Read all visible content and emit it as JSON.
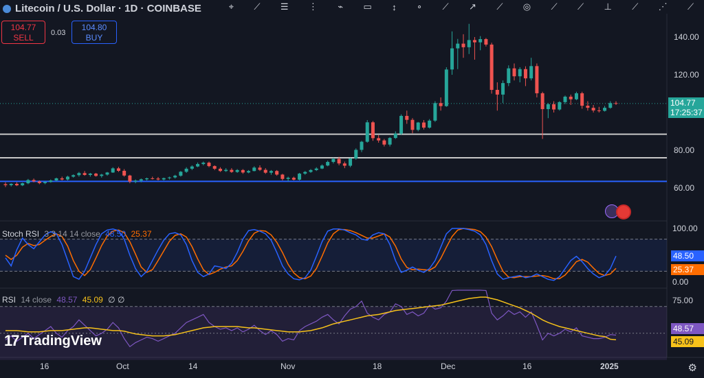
{
  "header": {
    "symbol_title": "Litecoin / U.S. Dollar · 1D · COINBASE",
    "sell_price": "104.77",
    "sell_label": "SELL",
    "spread": "0.03",
    "buy_price": "104.80",
    "buy_label": "BUY"
  },
  "toolbar": {
    "tools": [
      "crosshair-icon",
      "trend-line-icon",
      "horizontal-lines-icon",
      "fib-icon",
      "brush-icon",
      "text-icon",
      "measure-icon",
      "zoom-icon",
      "pattern-icon",
      "projection-icon",
      "path-icon",
      "arrow-icon",
      "circle-icon",
      "curve-icon",
      "ruler-icon",
      "anchor-icon",
      "node-icon",
      "more-icon"
    ]
  },
  "price_axis": {
    "ticks": [
      "140.00",
      "120.00",
      "80.00",
      "60.00"
    ],
    "current_price": "104.77",
    "countdown": "17:25:37"
  },
  "stoch": {
    "title": "Stoch RSI",
    "params": "3 3 14 14 close",
    "k_value": "48.50",
    "d_value": "25.37",
    "ticks": [
      "100.00",
      "0.00"
    ],
    "tag_k": "48.50",
    "tag_d": "25.37"
  },
  "rsi": {
    "title": "RSI",
    "params": "14 close",
    "value": "48.57",
    "ma_value": "45.09",
    "extra": "∅ ∅",
    "ticks": [
      "75.00"
    ],
    "tag_value": "48.57",
    "tag_ma": "45.09"
  },
  "time_axis": [
    "16",
    "Oct",
    "14",
    "Nov",
    "18",
    "Dec",
    "16",
    "2025"
  ],
  "watermark": "TradingView",
  "colors": {
    "background": "#131722",
    "up": "#26a69a",
    "down": "#ef5350",
    "k_line": "#2962ff",
    "d_line": "#ff6d00",
    "rsi_line": "#7e57c2",
    "rsi_ma": "#f7c21a",
    "support_line": "#c8c8c8",
    "blue_line": "#2962ff",
    "price_tag": "#26a69a"
  },
  "chart_data": {
    "type": "candlestick",
    "interval": "1D",
    "ylim": [
      55,
      148
    ],
    "candles": [
      {
        "o": 62.0,
        "h": 63.0,
        "l": 60.5,
        "c": 61.5
      },
      {
        "o": 61.5,
        "h": 62.5,
        "l": 60.8,
        "c": 62.2
      },
      {
        "o": 62.2,
        "h": 63.0,
        "l": 61.0,
        "c": 61.4
      },
      {
        "o": 61.4,
        "h": 62.8,
        "l": 61.0,
        "c": 62.5
      },
      {
        "o": 62.5,
        "h": 64.8,
        "l": 62.0,
        "c": 64.2
      },
      {
        "o": 64.2,
        "h": 65.0,
        "l": 63.0,
        "c": 63.5
      },
      {
        "o": 63.5,
        "h": 64.0,
        "l": 62.0,
        "c": 62.6
      },
      {
        "o": 62.6,
        "h": 63.5,
        "l": 62.0,
        "c": 63.2
      },
      {
        "o": 63.2,
        "h": 64.5,
        "l": 62.8,
        "c": 64.0
      },
      {
        "o": 64.0,
        "h": 65.5,
        "l": 63.5,
        "c": 65.1
      },
      {
        "o": 65.1,
        "h": 66.0,
        "l": 64.0,
        "c": 64.5
      },
      {
        "o": 64.5,
        "h": 66.5,
        "l": 64.0,
        "c": 66.0
      },
      {
        "o": 66.0,
        "h": 67.2,
        "l": 65.5,
        "c": 66.8
      },
      {
        "o": 66.8,
        "h": 68.5,
        "l": 66.0,
        "c": 67.9
      },
      {
        "o": 67.9,
        "h": 69.0,
        "l": 66.5,
        "c": 66.9
      },
      {
        "o": 66.9,
        "h": 68.0,
        "l": 66.0,
        "c": 67.6
      },
      {
        "o": 67.6,
        "h": 68.0,
        "l": 66.0,
        "c": 66.4
      },
      {
        "o": 66.4,
        "h": 67.5,
        "l": 65.5,
        "c": 67.1
      },
      {
        "o": 67.1,
        "h": 68.5,
        "l": 66.5,
        "c": 68.2
      },
      {
        "o": 68.2,
        "h": 71.0,
        "l": 68.0,
        "c": 70.4
      },
      {
        "o": 70.4,
        "h": 71.2,
        "l": 68.5,
        "c": 69.1
      },
      {
        "o": 69.1,
        "h": 70.0,
        "l": 66.0,
        "c": 66.6
      },
      {
        "o": 66.6,
        "h": 67.0,
        "l": 62.5,
        "c": 63.4
      },
      {
        "o": 63.4,
        "h": 64.5,
        "l": 62.5,
        "c": 63.9
      },
      {
        "o": 63.9,
        "h": 65.0,
        "l": 63.0,
        "c": 64.6
      },
      {
        "o": 64.6,
        "h": 65.5,
        "l": 64.0,
        "c": 65.1
      },
      {
        "o": 65.1,
        "h": 66.0,
        "l": 64.5,
        "c": 65.0
      },
      {
        "o": 65.0,
        "h": 65.8,
        "l": 64.0,
        "c": 64.5
      },
      {
        "o": 64.5,
        "h": 65.5,
        "l": 64.0,
        "c": 65.2
      },
      {
        "o": 65.2,
        "h": 66.0,
        "l": 64.5,
        "c": 65.6
      },
      {
        "o": 65.6,
        "h": 67.0,
        "l": 65.0,
        "c": 66.5
      },
      {
        "o": 66.5,
        "h": 69.0,
        "l": 66.0,
        "c": 68.6
      },
      {
        "o": 68.6,
        "h": 71.0,
        "l": 68.0,
        "c": 70.2
      },
      {
        "o": 70.2,
        "h": 72.0,
        "l": 69.5,
        "c": 71.4
      },
      {
        "o": 71.4,
        "h": 73.5,
        "l": 71.0,
        "c": 72.7
      },
      {
        "o": 72.7,
        "h": 74.0,
        "l": 72.0,
        "c": 73.4
      },
      {
        "o": 73.4,
        "h": 74.0,
        "l": 71.0,
        "c": 71.6
      },
      {
        "o": 71.6,
        "h": 72.0,
        "l": 69.5,
        "c": 70.2
      },
      {
        "o": 70.2,
        "h": 71.0,
        "l": 68.5,
        "c": 69.0
      },
      {
        "o": 69.0,
        "h": 70.5,
        "l": 68.5,
        "c": 69.6
      },
      {
        "o": 69.6,
        "h": 70.5,
        "l": 68.0,
        "c": 68.5
      },
      {
        "o": 68.5,
        "h": 70.0,
        "l": 68.0,
        "c": 69.5
      },
      {
        "o": 69.5,
        "h": 70.0,
        "l": 67.5,
        "c": 68.2
      },
      {
        "o": 68.2,
        "h": 69.5,
        "l": 67.8,
        "c": 69.0
      },
      {
        "o": 69.0,
        "h": 71.5,
        "l": 68.8,
        "c": 70.8
      },
      {
        "o": 70.8,
        "h": 72.0,
        "l": 69.0,
        "c": 69.6
      },
      {
        "o": 69.6,
        "h": 70.5,
        "l": 67.5,
        "c": 68.1
      },
      {
        "o": 68.1,
        "h": 69.5,
        "l": 67.0,
        "c": 69.0
      },
      {
        "o": 69.0,
        "h": 69.5,
        "l": 66.5,
        "c": 67.1
      },
      {
        "o": 67.1,
        "h": 67.5,
        "l": 64.0,
        "c": 64.8
      },
      {
        "o": 64.8,
        "h": 66.0,
        "l": 63.5,
        "c": 65.4
      },
      {
        "o": 65.4,
        "h": 66.0,
        "l": 64.0,
        "c": 64.4
      },
      {
        "o": 64.4,
        "h": 68.0,
        "l": 64.0,
        "c": 67.6
      },
      {
        "o": 67.6,
        "h": 69.0,
        "l": 67.0,
        "c": 68.5
      },
      {
        "o": 68.5,
        "h": 70.0,
        "l": 68.0,
        "c": 69.5
      },
      {
        "o": 69.5,
        "h": 71.0,
        "l": 69.0,
        "c": 70.3
      },
      {
        "o": 70.3,
        "h": 72.5,
        "l": 70.0,
        "c": 71.9
      },
      {
        "o": 71.9,
        "h": 74.5,
        "l": 71.5,
        "c": 73.8
      },
      {
        "o": 73.8,
        "h": 76.0,
        "l": 73.0,
        "c": 75.4
      },
      {
        "o": 75.4,
        "h": 76.5,
        "l": 72.0,
        "c": 73.0
      },
      {
        "o": 73.0,
        "h": 74.0,
        "l": 70.5,
        "c": 71.8
      },
      {
        "o": 71.8,
        "h": 76.0,
        "l": 71.0,
        "c": 75.6
      },
      {
        "o": 75.6,
        "h": 81.0,
        "l": 75.0,
        "c": 80.2
      },
      {
        "o": 80.2,
        "h": 85.0,
        "l": 79.0,
        "c": 84.5
      },
      {
        "o": 84.5,
        "h": 96.0,
        "l": 84.0,
        "c": 94.8
      },
      {
        "o": 94.8,
        "h": 95.5,
        "l": 85.0,
        "c": 86.4
      },
      {
        "o": 86.4,
        "h": 88.0,
        "l": 84.0,
        "c": 85.2
      },
      {
        "o": 85.2,
        "h": 86.0,
        "l": 82.0,
        "c": 83.0
      },
      {
        "o": 83.0,
        "h": 87.0,
        "l": 82.0,
        "c": 86.5
      },
      {
        "o": 86.5,
        "h": 90.0,
        "l": 86.0,
        "c": 88.8
      },
      {
        "o": 88.8,
        "h": 99.0,
        "l": 88.0,
        "c": 98.2
      },
      {
        "o": 98.2,
        "h": 101.0,
        "l": 94.0,
        "c": 96.1
      },
      {
        "o": 96.1,
        "h": 97.0,
        "l": 89.0,
        "c": 90.8
      },
      {
        "o": 90.8,
        "h": 95.0,
        "l": 90.0,
        "c": 94.7
      },
      {
        "o": 94.7,
        "h": 96.0,
        "l": 91.0,
        "c": 92.0
      },
      {
        "o": 92.0,
        "h": 96.5,
        "l": 91.5,
        "c": 95.7
      },
      {
        "o": 95.7,
        "h": 106.0,
        "l": 95.0,
        "c": 105.0
      },
      {
        "o": 105.0,
        "h": 108.0,
        "l": 101.0,
        "c": 103.4
      },
      {
        "o": 103.4,
        "h": 124.0,
        "l": 103.0,
        "c": 122.8
      },
      {
        "o": 122.8,
        "h": 143.0,
        "l": 120.0,
        "c": 134.0
      },
      {
        "o": 134.0,
        "h": 139.0,
        "l": 123.0,
        "c": 136.5
      },
      {
        "o": 136.5,
        "h": 141.5,
        "l": 129.0,
        "c": 134.6
      },
      {
        "o": 134.6,
        "h": 147.0,
        "l": 131.0,
        "c": 138.4
      },
      {
        "o": 138.4,
        "h": 140.0,
        "l": 128.0,
        "c": 137.2
      },
      {
        "o": 137.2,
        "h": 140.5,
        "l": 133.0,
        "c": 138.9
      },
      {
        "o": 138.9,
        "h": 139.5,
        "l": 135.0,
        "c": 136.0
      },
      {
        "o": 136.0,
        "h": 137.0,
        "l": 110.0,
        "c": 112.0
      },
      {
        "o": 112.0,
        "h": 116.0,
        "l": 101.0,
        "c": 109.5
      },
      {
        "o": 109.5,
        "h": 117.0,
        "l": 105.0,
        "c": 115.6
      },
      {
        "o": 115.6,
        "h": 125.0,
        "l": 114.0,
        "c": 123.4
      },
      {
        "o": 123.4,
        "h": 126.0,
        "l": 117.0,
        "c": 119.2
      },
      {
        "o": 119.2,
        "h": 124.0,
        "l": 116.0,
        "c": 123.0
      },
      {
        "o": 123.0,
        "h": 124.5,
        "l": 114.0,
        "c": 118.1
      },
      {
        "o": 118.1,
        "h": 129.0,
        "l": 117.0,
        "c": 124.6
      },
      {
        "o": 124.6,
        "h": 126.0,
        "l": 108.0,
        "c": 110.2
      },
      {
        "o": 110.2,
        "h": 111.0,
        "l": 86.0,
        "c": 101.8
      },
      {
        "o": 101.8,
        "h": 105.0,
        "l": 97.0,
        "c": 104.4
      },
      {
        "o": 104.4,
        "h": 106.0,
        "l": 100.0,
        "c": 101.6
      },
      {
        "o": 101.6,
        "h": 106.0,
        "l": 101.0,
        "c": 105.5
      },
      {
        "o": 105.5,
        "h": 109.0,
        "l": 104.5,
        "c": 108.4
      },
      {
        "o": 108.4,
        "h": 109.5,
        "l": 104.0,
        "c": 107.0
      },
      {
        "o": 107.0,
        "h": 111.0,
        "l": 106.5,
        "c": 110.2
      },
      {
        "o": 110.2,
        "h": 111.0,
        "l": 102.0,
        "c": 103.6
      },
      {
        "o": 103.6,
        "h": 106.0,
        "l": 101.0,
        "c": 102.5
      },
      {
        "o": 102.5,
        "h": 104.0,
        "l": 100.0,
        "c": 101.1
      },
      {
        "o": 101.1,
        "h": 103.0,
        "l": 100.0,
        "c": 100.9
      },
      {
        "o": 100.9,
        "h": 103.5,
        "l": 100.5,
        "c": 102.5
      },
      {
        "o": 102.5,
        "h": 106.0,
        "l": 102.0,
        "c": 105.0
      },
      {
        "o": 105.0,
        "h": 106.0,
        "l": 104.0,
        "c": 104.77
      }
    ],
    "horizontal_lines": [
      {
        "price": 88.5,
        "color": "#c8c8c8"
      },
      {
        "price": 76.0,
        "color": "#c8c8c8"
      },
      {
        "price": 63.5,
        "color": "#2962ff"
      }
    ],
    "stoch_rsi": {
      "ylim": [
        0,
        100
      ],
      "k": [
        45,
        30,
        60,
        82,
        70,
        62,
        75,
        88,
        94,
        90,
        70,
        40,
        10,
        5,
        20,
        45,
        70,
        90,
        97,
        99,
        96,
        80,
        50,
        25,
        10,
        20,
        40,
        60,
        78,
        90,
        92,
        88,
        70,
        40,
        18,
        10,
        15,
        30,
        28,
        25,
        35,
        55,
        80,
        96,
        98,
        95,
        90,
        78,
        55,
        30,
        15,
        6,
        4,
        8,
        22,
        48,
        75,
        95,
        99,
        99,
        97,
        92,
        88,
        80,
        78,
        88,
        92,
        90,
        70,
        40,
        18,
        22,
        28,
        22,
        18,
        25,
        40,
        65,
        90,
        100,
        100,
        100,
        98,
        95,
        88,
        70,
        40,
        15,
        5,
        8,
        10,
        12,
        8,
        10,
        15,
        10,
        5,
        3,
        10,
        25,
        40,
        48,
        38,
        25,
        15,
        8,
        12,
        25,
        48.5
      ],
      "d": [
        50,
        42,
        50,
        65,
        72,
        68,
        70,
        78,
        85,
        90,
        85,
        67,
        40,
        20,
        12,
        23,
        45,
        68,
        86,
        95,
        97,
        92,
        75,
        52,
        28,
        18,
        23,
        40,
        58,
        76,
        87,
        90,
        84,
        66,
        43,
        23,
        14,
        18,
        24,
        28,
        30,
        40,
        57,
        77,
        91,
        96,
        95,
        88,
        74,
        55,
        33,
        17,
        8,
        6,
        11,
        25,
        48,
        73,
        90,
        98,
        98,
        96,
        92,
        87,
        82,
        82,
        86,
        90,
        84,
        67,
        43,
        27,
        23,
        24,
        23,
        22,
        28,
        44,
        65,
        85,
        97,
        100,
        99,
        98,
        94,
        84,
        66,
        42,
        20,
        9,
        8,
        10,
        10,
        10,
        11,
        12,
        10,
        6,
        6,
        13,
        25,
        38,
        42,
        37,
        26,
        16,
        12,
        15,
        25.37
      ]
    },
    "rsi": {
      "ylim": [
        25,
        85
      ],
      "value": [
        45,
        48,
        44,
        47,
        50,
        46,
        49,
        52,
        55,
        50,
        47,
        52,
        55,
        60,
        56,
        52,
        48,
        50,
        53,
        58,
        54,
        46,
        40,
        43,
        45,
        47,
        46,
        44,
        46,
        48,
        50,
        54,
        58,
        60,
        62,
        64,
        58,
        55,
        53,
        54,
        52,
        54,
        51,
        53,
        56,
        52,
        49,
        52,
        49,
        44,
        46,
        45,
        52,
        55,
        57,
        59,
        62,
        64,
        60,
        57,
        63,
        68,
        70,
        74,
        65,
        62,
        60,
        64,
        66,
        72,
        70,
        64,
        66,
        63,
        65,
        71,
        68,
        69,
        74,
        82,
        84,
        83,
        84,
        83,
        84,
        82,
        65,
        60,
        63,
        67,
        64,
        66,
        62,
        66,
        56,
        45,
        50,
        48,
        50,
        53,
        51,
        54,
        48,
        47,
        46,
        46,
        47,
        49,
        48.57
      ],
      "ma": [
        52,
        52,
        52,
        51.5,
        51,
        51,
        51,
        51.5,
        52,
        52,
        52,
        52.5,
        53,
        53.5,
        54,
        54,
        53.5,
        53,
        52.5,
        52,
        52,
        51.5,
        50.5,
        49.5,
        49,
        48.5,
        48,
        48,
        48,
        48.5,
        49,
        50,
        51,
        52,
        53,
        54,
        54.5,
        55,
        55,
        55,
        55,
        55,
        54.5,
        54,
        54,
        53.5,
        53,
        52.5,
        52,
        51.5,
        51,
        51,
        51,
        51.5,
        52,
        53,
        54,
        55.5,
        57,
        58,
        59,
        60,
        61,
        62,
        63,
        63.5,
        64,
        65,
        66,
        67,
        67.5,
        68,
        68.5,
        69,
        69.5,
        70,
        70.5,
        71,
        72,
        73,
        74,
        75,
        76,
        76.5,
        77,
        77,
        76,
        75,
        73.5,
        72,
        70.5,
        69,
        67,
        65,
        62.5,
        60,
        58,
        56.5,
        55,
        54,
        53,
        52,
        51,
        50,
        49,
        48,
        47.5,
        45.5,
        45.09
      ]
    }
  }
}
